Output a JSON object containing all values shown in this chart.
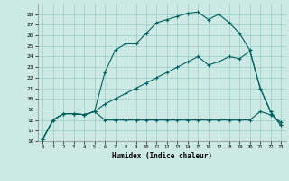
{
  "xlabel": "Humidex (Indice chaleur)",
  "xlim": [
    -0.5,
    23.5
  ],
  "ylim": [
    16,
    29
  ],
  "yticks": [
    16,
    17,
    18,
    19,
    20,
    21,
    22,
    23,
    24,
    25,
    26,
    27,
    28
  ],
  "xticks": [
    0,
    1,
    2,
    3,
    4,
    5,
    6,
    7,
    8,
    9,
    10,
    11,
    12,
    13,
    14,
    15,
    16,
    17,
    18,
    19,
    20,
    21,
    22,
    23
  ],
  "bg_color": "#cce9e4",
  "grid_color": "#99cccc",
  "line_color": "#006060",
  "line1_x": [
    0,
    1,
    2,
    3,
    4,
    5,
    6,
    7,
    8,
    9,
    10,
    11,
    12,
    13,
    14,
    15,
    16,
    17,
    18,
    19,
    20,
    21,
    22,
    23
  ],
  "line1_y": [
    16.2,
    18.0,
    18.6,
    18.6,
    18.5,
    18.8,
    22.5,
    24.6,
    25.2,
    25.2,
    26.2,
    27.2,
    27.5,
    27.8,
    28.1,
    28.2,
    27.5,
    28.0,
    27.2,
    26.2,
    24.6,
    21.0,
    18.8,
    17.5
  ],
  "line2_x": [
    0,
    1,
    2,
    3,
    4,
    5,
    6,
    7,
    8,
    9,
    10,
    11,
    12,
    13,
    14,
    15,
    16,
    17,
    18,
    19,
    20,
    21,
    22,
    23
  ],
  "line2_y": [
    16.2,
    18.0,
    18.6,
    18.6,
    18.5,
    18.8,
    19.5,
    20.0,
    20.5,
    21.0,
    21.5,
    22.0,
    22.5,
    23.0,
    23.5,
    24.0,
    23.2,
    23.5,
    24.0,
    23.8,
    24.5,
    21.0,
    18.8,
    17.5
  ],
  "line3_x": [
    0,
    1,
    2,
    3,
    4,
    5,
    6,
    7,
    8,
    9,
    10,
    11,
    12,
    13,
    14,
    15,
    16,
    17,
    18,
    19,
    20,
    21,
    22,
    23
  ],
  "line3_y": [
    16.2,
    18.0,
    18.6,
    18.6,
    18.5,
    18.8,
    18.0,
    18.0,
    18.0,
    18.0,
    18.0,
    18.0,
    18.0,
    18.0,
    18.0,
    18.0,
    18.0,
    18.0,
    18.0,
    18.0,
    18.0,
    18.8,
    18.5,
    17.8
  ]
}
